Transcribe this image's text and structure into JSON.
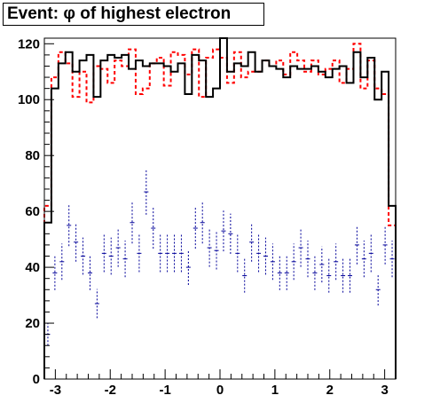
{
  "title": "Event: φ of highest electron",
  "colors": {
    "black": "#000000",
    "red": "#ff0000",
    "blue": "#000099"
  },
  "chart_data": {
    "type": "histogram",
    "title": "Event: φ of highest electron",
    "xlabel": "",
    "ylabel": "",
    "xlim": [
      -3.2,
      3.2
    ],
    "ylim": [
      0,
      122
    ],
    "grid": false,
    "legend": "none",
    "x_ticks": [
      -3,
      -2,
      -1,
      0,
      1,
      2,
      3
    ],
    "x_tick_labels": [
      "-3",
      "-2",
      "-1",
      "0",
      "1",
      "2",
      "3"
    ],
    "y_ticks": [
      0,
      20,
      40,
      60,
      80,
      100,
      120
    ],
    "y_tick_labels": [
      "0",
      "20",
      "40",
      "60",
      "80",
      "100",
      "120"
    ],
    "bins": 50,
    "series": [
      {
        "style": "black solid step",
        "values": [
          56,
          104,
          113,
          117,
          110,
          114,
          116,
          101,
          114,
          116,
          115,
          116,
          111,
          114,
          112,
          113,
          113,
          112,
          110,
          113,
          102,
          116,
          114,
          101,
          104,
          122,
          110,
          113,
          112,
          117,
          110,
          114,
          112,
          111,
          108,
          112,
          111,
          111,
          112,
          110,
          108,
          111,
          112,
          106,
          117,
          108,
          115,
          100,
          110,
          62
        ]
      },
      {
        "style": "red dashed step",
        "values": [
          62,
          108,
          117,
          113,
          101,
          110,
          99,
          112,
          111,
          106,
          114,
          112,
          118,
          102,
          104,
          113,
          115,
          105,
          117,
          116,
          109,
          118,
          101,
          115,
          118,
          115,
          106,
          117,
          108,
          110,
          110,
          114,
          112,
          114,
          109,
          117,
          114,
          110,
          114,
          109,
          111,
          114,
          106,
          111,
          120,
          104,
          114,
          104,
          102,
          55
        ]
      },
      {
        "style": "blue points with error bars",
        "values": [
          16,
          38,
          42,
          55,
          49,
          44,
          38,
          27,
          45,
          44,
          47,
          43,
          56,
          45,
          67,
          54,
          45,
          45,
          45,
          45,
          40,
          54,
          56,
          47,
          46,
          53,
          52,
          45,
          37,
          49,
          45,
          44,
          42,
          38,
          38,
          42,
          47,
          43,
          38,
          41,
          37,
          42,
          37,
          37,
          48,
          43,
          45,
          32,
          48,
          43
        ]
      }
    ]
  }
}
